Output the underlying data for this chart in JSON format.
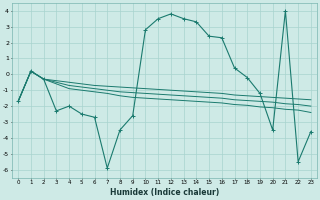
{
  "xlabel": "Humidex (Indice chaleur)",
  "x": [
    0,
    1,
    2,
    3,
    4,
    5,
    6,
    7,
    8,
    9,
    10,
    11,
    12,
    13,
    14,
    15,
    16,
    17,
    18,
    19,
    20,
    21,
    22,
    23
  ],
  "curve": [
    -1.7,
    0.2,
    -0.3,
    -2.3,
    -2.0,
    -2.5,
    -2.7,
    -5.9,
    -3.5,
    -2.6,
    2.8,
    3.5,
    3.8,
    3.5,
    3.3,
    2.4,
    2.3,
    0.4,
    -0.2,
    -1.2,
    -3.5,
    4.0,
    -5.5,
    -3.6
  ],
  "line1": [
    -1.7,
    0.2,
    -0.3,
    -0.4,
    -0.5,
    -0.6,
    -0.7,
    -0.75,
    -0.8,
    -0.85,
    -0.9,
    -0.95,
    -1.0,
    -1.05,
    -1.1,
    -1.15,
    -1.2,
    -1.3,
    -1.35,
    -1.4,
    -1.45,
    -1.5,
    -1.55,
    -1.6
  ],
  "line2": [
    -1.7,
    0.2,
    -0.3,
    -0.5,
    -0.7,
    -0.8,
    -0.9,
    -1.0,
    -1.1,
    -1.15,
    -1.2,
    -1.25,
    -1.3,
    -1.35,
    -1.4,
    -1.45,
    -1.5,
    -1.6,
    -1.65,
    -1.7,
    -1.75,
    -1.85,
    -1.9,
    -2.0
  ],
  "line3": [
    -1.7,
    0.2,
    -0.3,
    -0.6,
    -0.9,
    -1.0,
    -1.1,
    -1.2,
    -1.35,
    -1.45,
    -1.5,
    -1.55,
    -1.6,
    -1.65,
    -1.7,
    -1.75,
    -1.8,
    -1.9,
    -1.95,
    -2.05,
    -2.1,
    -2.2,
    -2.25,
    -2.4
  ],
  "color": "#1a7a6e",
  "bg_color": "#ceeae6",
  "grid_color": "#a8d4cf",
  "ylim": [
    -6.5,
    4.5
  ],
  "xlim": [
    -0.5,
    23.5
  ],
  "yticks": [
    -6,
    -5,
    -4,
    -3,
    -2,
    -1,
    0,
    1,
    2,
    3,
    4
  ],
  "xticks": [
    0,
    1,
    2,
    3,
    4,
    5,
    6,
    7,
    8,
    9,
    10,
    11,
    12,
    13,
    14,
    15,
    16,
    17,
    18,
    19,
    20,
    21,
    22,
    23
  ]
}
